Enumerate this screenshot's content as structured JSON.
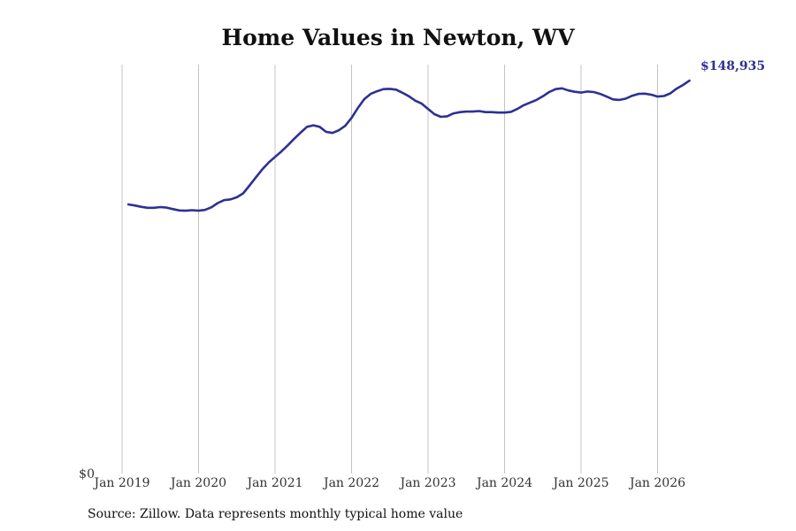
{
  "chart_data": {
    "type": "line",
    "title": "Home Values in Newton, WV",
    "xlabel": "",
    "ylabel": "",
    "x_ticks": [
      "Jan 2019",
      "Jan 2020",
      "Jan 2021",
      "Jan 2022",
      "Jan 2023",
      "Jan 2024",
      "Jan 2025",
      "Jan 2026"
    ],
    "y_ticks": [
      {
        "value": 0,
        "label": "$0"
      }
    ],
    "ylim": [
      0,
      155000
    ],
    "grid": "vertical",
    "line_color": "#2e3192",
    "end_label": "$148,935",
    "series": [
      {
        "values": [
          [
            2019.083,
            102000
          ],
          [
            2019.167,
            101600
          ],
          [
            2019.25,
            101100
          ],
          [
            2019.333,
            100700
          ],
          [
            2019.417,
            100700
          ],
          [
            2019.5,
            101000
          ],
          [
            2019.583,
            100800
          ],
          [
            2019.667,
            100200
          ],
          [
            2019.75,
            99700
          ],
          [
            2019.833,
            99600
          ],
          [
            2019.917,
            99800
          ],
          [
            2020.0,
            99600
          ],
          [
            2020.083,
            99900
          ],
          [
            2020.167,
            100900
          ],
          [
            2020.25,
            102500
          ],
          [
            2020.333,
            103600
          ],
          [
            2020.417,
            103900
          ],
          [
            2020.5,
            104700
          ],
          [
            2020.583,
            106200
          ],
          [
            2020.667,
            109200
          ],
          [
            2020.75,
            112300
          ],
          [
            2020.833,
            115300
          ],
          [
            2020.917,
            117900
          ],
          [
            2021.0,
            120000
          ],
          [
            2021.083,
            122100
          ],
          [
            2021.167,
            124400
          ],
          [
            2021.25,
            126900
          ],
          [
            2021.333,
            129200
          ],
          [
            2021.417,
            131400
          ],
          [
            2021.5,
            132000
          ],
          [
            2021.583,
            131400
          ],
          [
            2021.667,
            129500
          ],
          [
            2021.75,
            129100
          ],
          [
            2021.833,
            130100
          ],
          [
            2021.917,
            131800
          ],
          [
            2022.0,
            134800
          ],
          [
            2022.083,
            138600
          ],
          [
            2022.167,
            141900
          ],
          [
            2022.25,
            143900
          ],
          [
            2022.333,
            144900
          ],
          [
            2022.417,
            145700
          ],
          [
            2022.5,
            145800
          ],
          [
            2022.583,
            145500
          ],
          [
            2022.667,
            144300
          ],
          [
            2022.75,
            143000
          ],
          [
            2022.833,
            141300
          ],
          [
            2022.917,
            140200
          ],
          [
            2023.0,
            138200
          ],
          [
            2023.083,
            136200
          ],
          [
            2023.167,
            135200
          ],
          [
            2023.25,
            135400
          ],
          [
            2023.333,
            136500
          ],
          [
            2023.417,
            137000
          ],
          [
            2023.5,
            137200
          ],
          [
            2023.583,
            137200
          ],
          [
            2023.667,
            137400
          ],
          [
            2023.75,
            137000
          ],
          [
            2023.833,
            137000
          ],
          [
            2023.917,
            136800
          ],
          [
            2024.0,
            136800
          ],
          [
            2024.083,
            137100
          ],
          [
            2024.167,
            138200
          ],
          [
            2024.25,
            139600
          ],
          [
            2024.333,
            140600
          ],
          [
            2024.417,
            141600
          ],
          [
            2024.5,
            143000
          ],
          [
            2024.583,
            144600
          ],
          [
            2024.667,
            145700
          ],
          [
            2024.75,
            146000
          ],
          [
            2024.833,
            145200
          ],
          [
            2024.917,
            144700
          ],
          [
            2025.0,
            144400
          ],
          [
            2025.083,
            144800
          ],
          [
            2025.167,
            144600
          ],
          [
            2025.25,
            143900
          ],
          [
            2025.333,
            142900
          ],
          [
            2025.417,
            141800
          ],
          [
            2025.5,
            141600
          ],
          [
            2025.583,
            142100
          ],
          [
            2025.667,
            143200
          ],
          [
            2025.75,
            143900
          ],
          [
            2025.833,
            144000
          ],
          [
            2025.917,
            143600
          ],
          [
            2026.0,
            142900
          ],
          [
            2026.083,
            143100
          ],
          [
            2026.167,
            144100
          ],
          [
            2026.25,
            145900
          ],
          [
            2026.333,
            147300
          ],
          [
            2026.417,
            148935
          ]
        ]
      }
    ]
  },
  "source": "Source: Zillow. Data represents monthly typical home value"
}
